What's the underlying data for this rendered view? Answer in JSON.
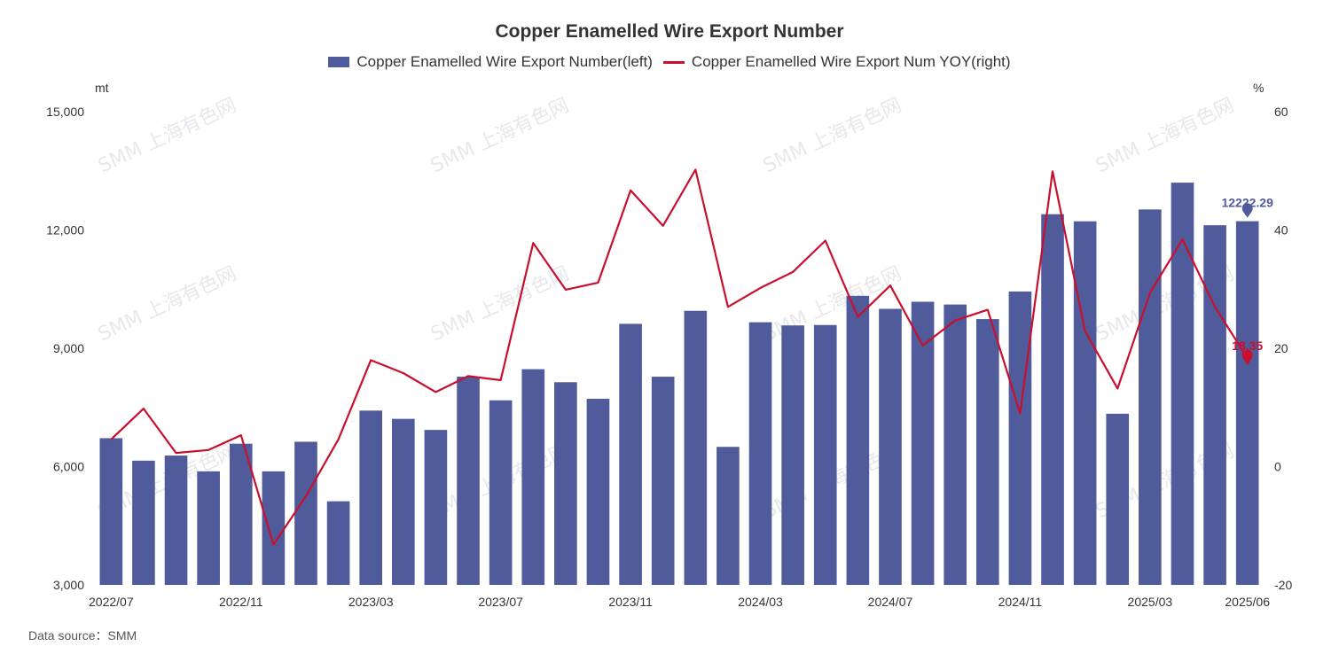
{
  "colors": {
    "bar": "#4f5b9b",
    "line": "#c8102e"
  },
  "chart_data": {
    "type": "bar",
    "title": "Copper Enamelled Wire Export Number",
    "x_tick_labels": [
      "2022/07",
      "2022/11",
      "2023/03",
      "2023/07",
      "2023/11",
      "2024/03",
      "2024/07",
      "2024/11",
      "2025/03",
      "2025/06"
    ],
    "x_tick_positions": [
      0,
      4,
      8,
      12,
      16,
      20,
      24,
      28,
      32,
      35
    ],
    "y_left": {
      "unit": "mt",
      "ticks": [
        "3,000",
        "6,000",
        "9,000",
        "12,000",
        "15,000"
      ],
      "min": 3000,
      "max": 15000
    },
    "y_right": {
      "unit": "%",
      "ticks": [
        "-20",
        "0",
        "20",
        "40",
        "60"
      ],
      "min": -20,
      "max": 60
    },
    "series": [
      {
        "name": "Copper Enamelled Wire Export Number(left)",
        "type": "bar",
        "axis": "left",
        "values": [
          6720,
          6150,
          6280,
          5880,
          6580,
          5880,
          6630,
          5120,
          7420,
          7210,
          6930,
          8280,
          7680,
          8470,
          8140,
          7720,
          9620,
          8280,
          9950,
          6500,
          9660,
          9580,
          9590,
          10330,
          10000,
          10180,
          10110,
          9740,
          10440,
          12400,
          12220,
          7340,
          12520,
          13200,
          12120,
          12222.29
        ]
      },
      {
        "name": "Copper Enamelled Wire Export Num YOY(right)",
        "type": "line",
        "axis": "right",
        "values": [
          4.6,
          9.8,
          2.3,
          2.8,
          5.3,
          -13.2,
          -5.0,
          4.6,
          18.0,
          15.8,
          12.6,
          15.3,
          14.6,
          37.8,
          29.9,
          31.1,
          46.7,
          40.7,
          50.2,
          27.0,
          30.2,
          32.9,
          38.2,
          25.3,
          30.6,
          20.5,
          24.7,
          26.5,
          9.0,
          49.9,
          22.9,
          13.2,
          29.4,
          38.4,
          27.0,
          18.35
        ]
      }
    ],
    "last_value_labels": {
      "bar": "12222.29",
      "line": "18.35"
    },
    "grid": false,
    "legend_position": "top-center"
  },
  "watermark": "SMM 上海有色网",
  "source_text": "Data source：SMM"
}
